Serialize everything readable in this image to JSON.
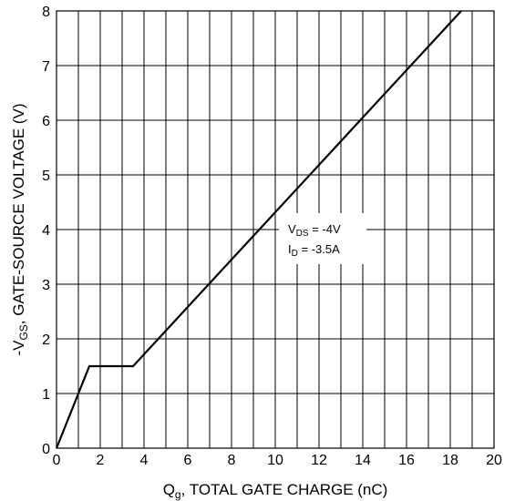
{
  "chart_data": {
    "type": "line",
    "title": "",
    "xlabel": {
      "main": "Q",
      "sub": "g",
      "rest": ", TOTAL GATE CHARGE (nC)"
    },
    "ylabel": {
      "pre": "-V",
      "sub": "GS",
      "rest": ", GATE-SOURCE VOLTAGE (V)"
    },
    "xlim": [
      0,
      20
    ],
    "ylim": [
      0,
      8
    ],
    "x_ticks": [
      0,
      2,
      4,
      6,
      8,
      10,
      12,
      14,
      16,
      18,
      20
    ],
    "y_ticks": [
      0,
      1,
      2,
      3,
      4,
      5,
      6,
      7,
      8
    ],
    "grid": true,
    "series": [
      {
        "x": [
          0,
          1.5,
          3.5,
          18.5
        ],
        "y": [
          0,
          1.5,
          1.5,
          8.0
        ]
      }
    ],
    "annotations": [
      {
        "main": "V",
        "sub": "DS",
        "rest": " = -4V"
      },
      {
        "main": "I",
        "sub": "D",
        "rest": " = -3.5A"
      }
    ]
  }
}
